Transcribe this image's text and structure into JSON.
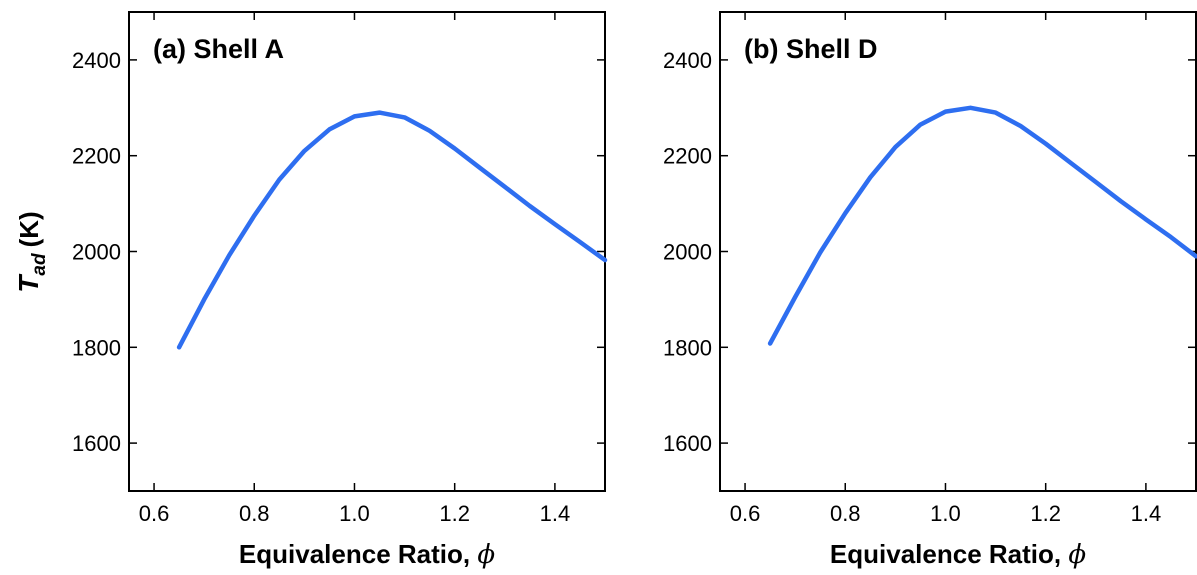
{
  "chart_data": [
    {
      "type": "line",
      "title": "(a) Shell A",
      "xlabel": "Equivalence Ratio, ",
      "xlabel_symbol": "ϕ",
      "ylabel": {
        "symbol": "T",
        "subscript": "ad",
        "unit": "(K)"
      },
      "xlim": [
        0.55,
        1.5
      ],
      "ylim": [
        1500,
        2500
      ],
      "xticks": [
        0.6,
        0.8,
        1.0,
        1.2,
        1.4
      ],
      "xtick_labels": [
        "0.6",
        "0.8",
        "1.0",
        "1.2",
        "1.4"
      ],
      "yticks": [
        1600,
        1800,
        2000,
        2200,
        2400
      ],
      "ytick_labels": [
        "1600",
        "1800",
        "2000",
        "2200",
        "2400"
      ],
      "grid": false,
      "series": [
        {
          "color": "#2e6ef0",
          "x": [
            0.65,
            0.7,
            0.75,
            0.8,
            0.85,
            0.9,
            0.95,
            1.0,
            1.05,
            1.1,
            1.15,
            1.2,
            1.25,
            1.3,
            1.35,
            1.4,
            1.45,
            1.5
          ],
          "y": [
            1800,
            1900,
            1992,
            2075,
            2150,
            2210,
            2255,
            2282,
            2290,
            2280,
            2252,
            2215,
            2175,
            2135,
            2095,
            2057,
            2020,
            1982
          ]
        }
      ]
    },
    {
      "type": "line",
      "title": "(b) Shell D",
      "xlabel": "Equivalence Ratio, ",
      "xlabel_symbol": "ϕ",
      "xlim": [
        0.55,
        1.5
      ],
      "ylim": [
        1500,
        2500
      ],
      "xticks": [
        0.6,
        0.8,
        1.0,
        1.2,
        1.4
      ],
      "xtick_labels": [
        "0.6",
        "0.8",
        "1.0",
        "1.2",
        "1.4"
      ],
      "yticks": [
        1600,
        1800,
        2000,
        2200,
        2400
      ],
      "ytick_labels": [
        "1600",
        "1800",
        "2000",
        "2200",
        "2400"
      ],
      "grid": false,
      "series": [
        {
          "color": "#2e6ef0",
          "x": [
            0.65,
            0.7,
            0.75,
            0.8,
            0.85,
            0.9,
            0.95,
            1.0,
            1.05,
            1.1,
            1.15,
            1.2,
            1.25,
            1.3,
            1.35,
            1.4,
            1.45,
            1.5
          ],
          "y": [
            1808,
            1905,
            1998,
            2080,
            2155,
            2218,
            2265,
            2292,
            2300,
            2290,
            2262,
            2225,
            2185,
            2145,
            2105,
            2067,
            2030,
            1990
          ]
        }
      ]
    }
  ]
}
